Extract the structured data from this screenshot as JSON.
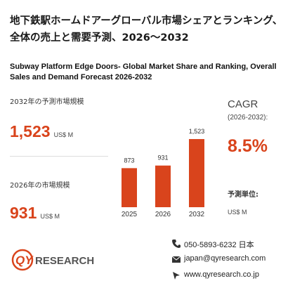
{
  "header": {
    "title": "地下鉄駅ホームドアーグローバル市場シェアとランキング、全体の売上と需要予測、2026～2032",
    "subtitle": "Subway Platform Edge Doors- Global Market Share and Ranking, Overall Sales and Demand Forecast 2026-2032"
  },
  "stats": {
    "forecast_label": "2032年の予測市場規模",
    "forecast_value": "1,523",
    "forecast_unit": "US$ M",
    "current_label": "2026年の市場規模",
    "current_value": "931",
    "current_unit": "US$ M",
    "cagr_label": "CAGR",
    "cagr_period": "(2026-2032):",
    "cagr_value": "8.5%",
    "unit_label": "予測単位:",
    "unit_value": "US$ M"
  },
  "logo": {
    "part1": "QY",
    "part2": "RESEARCH"
  },
  "contact": {
    "phone": "050-5893-6232 日本",
    "email": "japan@qyresearch.com",
    "web": "www.qyresearch.co.jp"
  },
  "chart_data": {
    "type": "bar",
    "categories": [
      "2025",
      "2026",
      "2032"
    ],
    "values": [
      873,
      931,
      1523
    ],
    "value_labels": [
      "873",
      "931",
      "1,523"
    ],
    "color": "#d9441c"
  }
}
